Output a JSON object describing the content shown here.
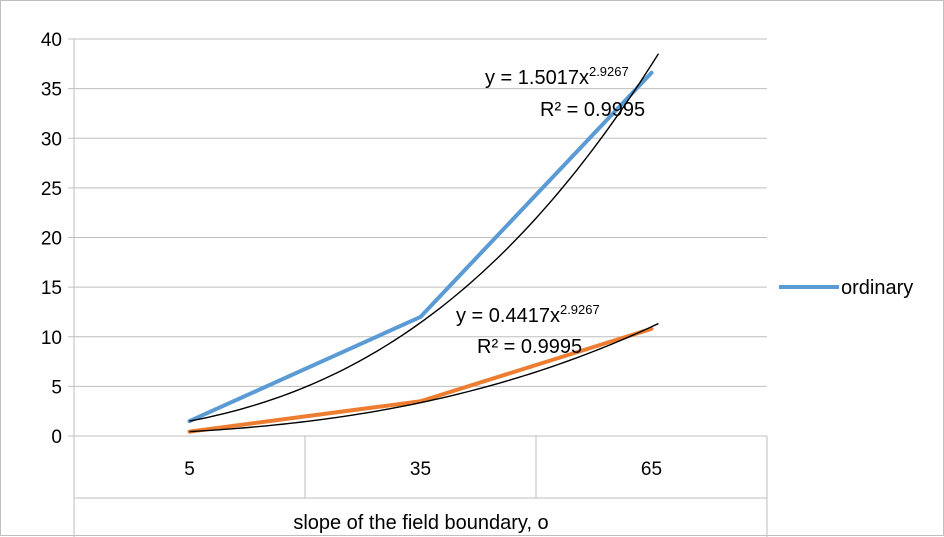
{
  "chart_data": {
    "type": "line",
    "title": "",
    "xlabel": "slope of the field boundary, o",
    "ylabel": "",
    "categories": [
      "5",
      "35",
      "65"
    ],
    "ylim": [
      0,
      40
    ],
    "yticks": [
      0,
      5,
      10,
      15,
      20,
      25,
      30,
      35,
      40
    ],
    "grid": true,
    "legend_position": "right",
    "series": [
      {
        "name": "ordinary",
        "values": [
          1.5,
          12,
          36.6
        ],
        "color": "#5b9bd5"
      },
      {
        "values": [
          0.44,
          3.5,
          10.8
        ],
        "color": "#ed7d31"
      }
    ],
    "trendlines": [
      {
        "type": "power",
        "a": 1.5017,
        "b": 2.9267,
        "color": "#000000",
        "equation_prefix": "y = 1.5017x",
        "exponent": "2.9267",
        "r2_label": "R² = 0.9995"
      },
      {
        "type": "power",
        "a": 0.4417,
        "b": 2.9267,
        "color": "#000000",
        "equation_prefix": "y = 0.4417x",
        "exponent": "2.9267",
        "r2_label": "R² = 0.9995"
      }
    ]
  }
}
